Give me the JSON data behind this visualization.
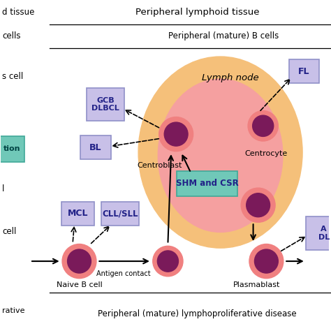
{
  "bg_color": "#ffffff",
  "lymph_node_outer_color": "#f5c07a",
  "lymph_node_inner_color": "#f5a0a0",
  "cell_outer_color": "#f08080",
  "cell_inner_color": "#7a1a5a",
  "box_purple_color": "#c8c0e8",
  "box_purple_edge": "#9090c8",
  "box_teal_color": "#70c8b8",
  "box_teal_edge": "#40a898",
  "title_top": "Peripheral lymphoid tissue",
  "label_mature_b": "Peripheral (mature) B cells",
  "label_peripheral_disease": "Peripheral (mature) lymphoproliferative disease",
  "label_lymph_node": "Lymph node",
  "label_centroblast": "Centroblast",
  "label_centrocyte": "Centrocyte",
  "label_plasmablast": "Plasmablast",
  "label_naive_b": "Naive B cell",
  "label_antigen": "Antigen contact",
  "label_shm": "SHM and CSR"
}
